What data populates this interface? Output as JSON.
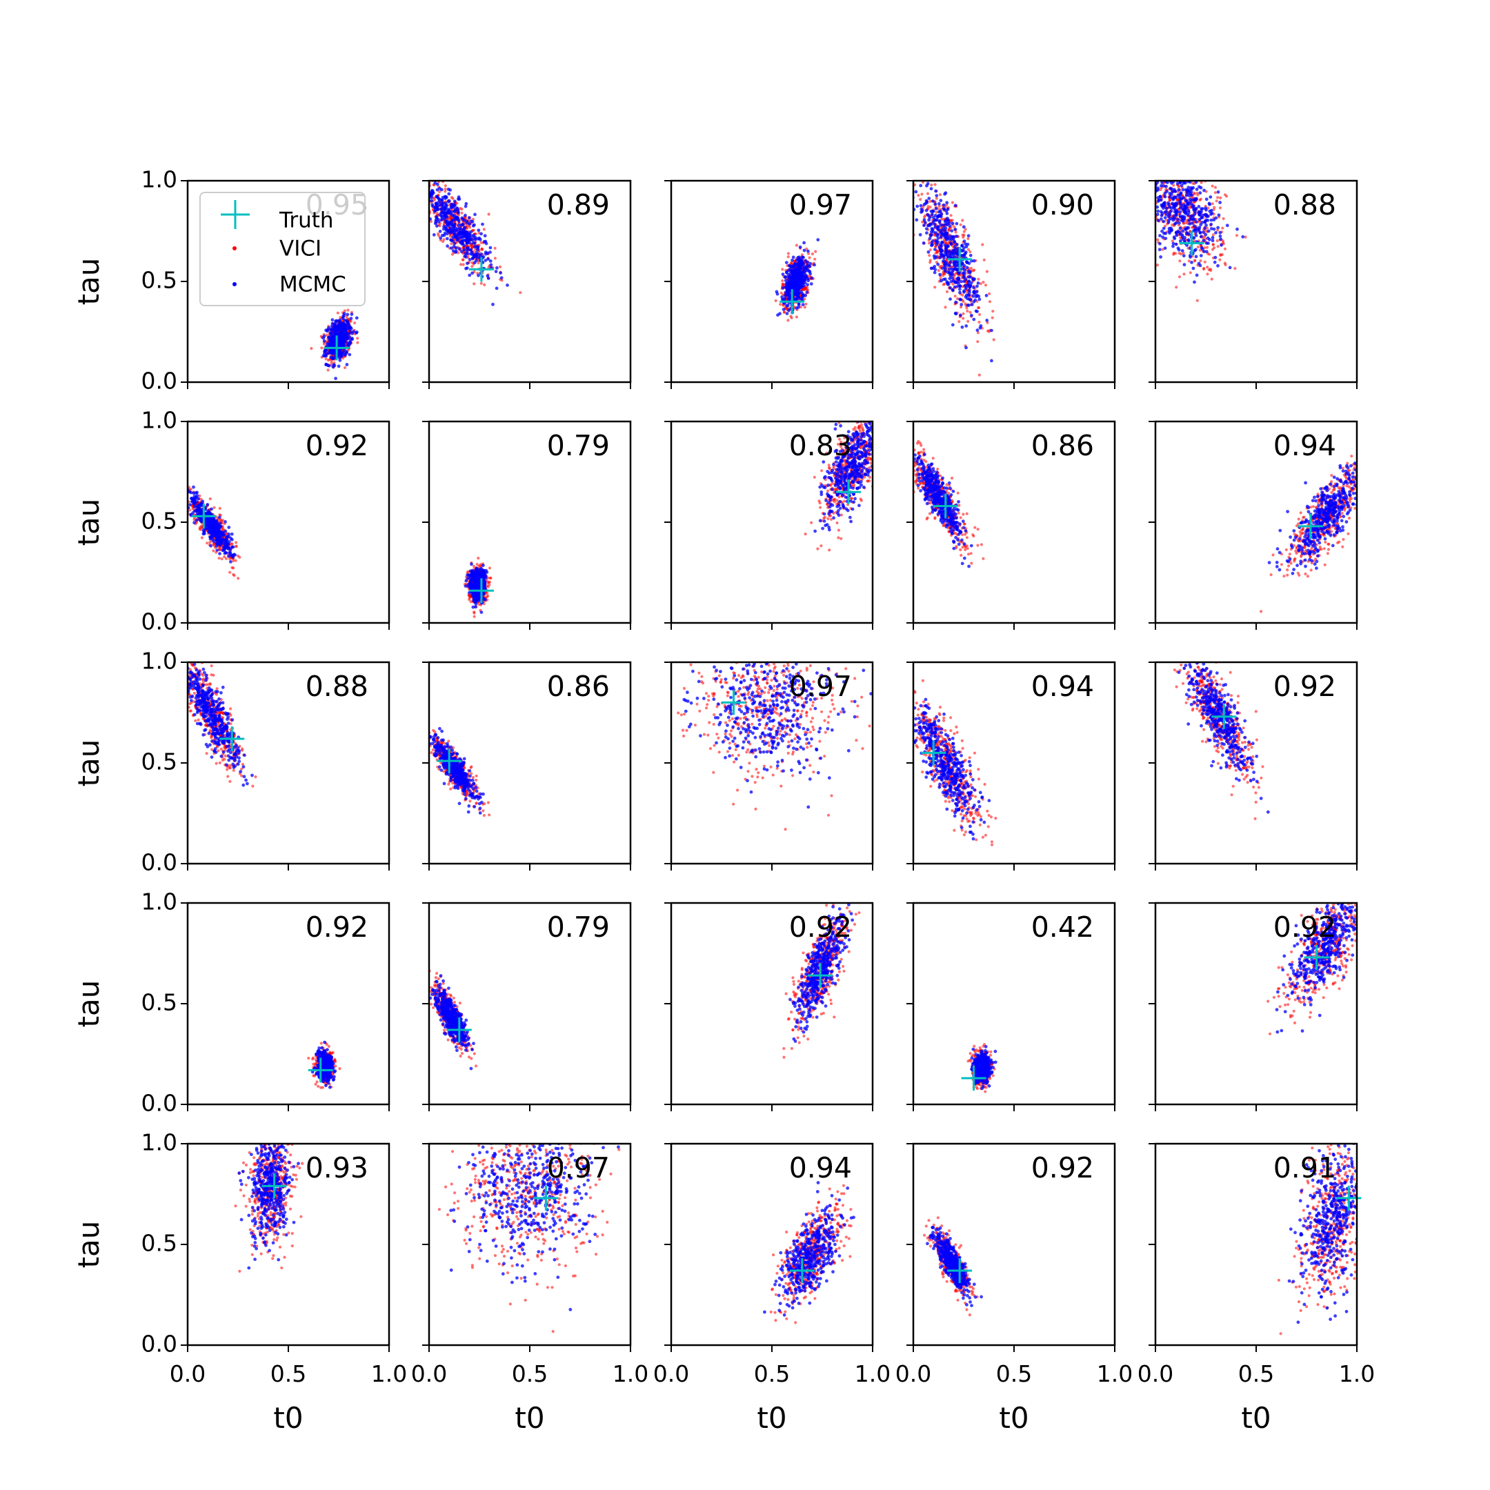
{
  "figure": {
    "xlabel": "t0",
    "ylabel": "tau",
    "xticks": [
      "0.0",
      "0.5",
      "1.0"
    ],
    "yticks": [
      "0.0",
      "0.5",
      "1.0"
    ],
    "legend": {
      "truth": "Truth",
      "vici": "VICI",
      "mcmc": "MCMC"
    }
  },
  "colors": {
    "truth": "#00bfbf",
    "vici": "#ff0000",
    "mcmc": "#0000ff"
  },
  "chart_data": {
    "type": "scatter",
    "grid": "off",
    "layout": "5x5 grid of subplots",
    "xlabel": "t0",
    "ylabel": "tau",
    "xlim": [
      0,
      1
    ],
    "ylim": [
      0,
      1
    ],
    "legend_position": "top-left (first panel)",
    "series_names": [
      "Truth",
      "VICI",
      "MCMC"
    ],
    "panels": [
      {
        "score": "0.95",
        "truth": [
          0.74,
          0.17
        ],
        "cloud": {
          "cx": 0.75,
          "cy": 0.21,
          "sx": 0.03,
          "sy": 0.05,
          "rho": 0.3
        }
      },
      {
        "score": "0.89",
        "truth": [
          0.26,
          0.56
        ],
        "cloud": {
          "cx": 0.13,
          "cy": 0.78,
          "sx": 0.09,
          "sy": 0.12,
          "rho": -0.85
        }
      },
      {
        "score": "0.97",
        "truth": [
          0.6,
          0.4
        ],
        "cloud": {
          "cx": 0.62,
          "cy": 0.5,
          "sx": 0.03,
          "sy": 0.06,
          "rho": 0.4
        }
      },
      {
        "score": "0.90",
        "truth": [
          0.23,
          0.61
        ],
        "cloud": {
          "cx": 0.18,
          "cy": 0.64,
          "sx": 0.08,
          "sy": 0.16,
          "rho": -0.8
        }
      },
      {
        "score": "0.88",
        "truth": [
          0.18,
          0.69
        ],
        "cloud": {
          "cx": 0.14,
          "cy": 0.84,
          "sx": 0.09,
          "sy": 0.12,
          "rho": -0.4
        }
      },
      {
        "score": "0.92",
        "truth": [
          0.08,
          0.53
        ],
        "cloud": {
          "cx": 0.12,
          "cy": 0.48,
          "sx": 0.05,
          "sy": 0.07,
          "rho": -0.85
        }
      },
      {
        "score": "0.79",
        "truth": [
          0.26,
          0.16
        ],
        "cloud": {
          "cx": 0.24,
          "cy": 0.19,
          "sx": 0.02,
          "sy": 0.04,
          "rho": 0.0
        }
      },
      {
        "score": "0.83",
        "truth": [
          0.88,
          0.65
        ],
        "cloud": {
          "cx": 0.9,
          "cy": 0.78,
          "sx": 0.07,
          "sy": 0.13,
          "rho": 0.7
        }
      },
      {
        "score": "0.86",
        "truth": [
          0.16,
          0.58
        ],
        "cloud": {
          "cx": 0.13,
          "cy": 0.62,
          "sx": 0.06,
          "sy": 0.1,
          "rho": -0.85
        }
      },
      {
        "score": "0.94",
        "truth": [
          0.77,
          0.48
        ],
        "cloud": {
          "cx": 0.85,
          "cy": 0.53,
          "sx": 0.09,
          "sy": 0.12,
          "rho": 0.8
        }
      },
      {
        "score": "0.88",
        "truth": [
          0.22,
          0.62
        ],
        "cloud": {
          "cx": 0.12,
          "cy": 0.74,
          "sx": 0.07,
          "sy": 0.13,
          "rho": -0.85
        }
      },
      {
        "score": "0.86",
        "truth": [
          0.1,
          0.51
        ],
        "cloud": {
          "cx": 0.13,
          "cy": 0.47,
          "sx": 0.05,
          "sy": 0.07,
          "rho": -0.85
        }
      },
      {
        "score": "0.97",
        "truth": [
          0.31,
          0.8
        ],
        "cloud": {
          "cx": 0.48,
          "cy": 0.78,
          "sx": 0.17,
          "sy": 0.16,
          "rho": 0.0
        }
      },
      {
        "score": "0.94",
        "truth": [
          0.1,
          0.55
        ],
        "cloud": {
          "cx": 0.16,
          "cy": 0.5,
          "sx": 0.08,
          "sy": 0.14,
          "rho": -0.8
        }
      },
      {
        "score": "0.92",
        "truth": [
          0.34,
          0.73
        ],
        "cloud": {
          "cx": 0.31,
          "cy": 0.73,
          "sx": 0.08,
          "sy": 0.14,
          "rho": -0.8
        }
      },
      {
        "score": "0.92",
        "truth": [
          0.66,
          0.17
        ],
        "cloud": {
          "cx": 0.68,
          "cy": 0.19,
          "sx": 0.02,
          "sy": 0.035,
          "rho": 0.0
        }
      },
      {
        "score": "0.79",
        "truth": [
          0.15,
          0.37
        ],
        "cloud": {
          "cx": 0.11,
          "cy": 0.43,
          "sx": 0.04,
          "sy": 0.07,
          "rho": -0.8
        }
      },
      {
        "score": "0.92",
        "truth": [
          0.74,
          0.64
        ],
        "cloud": {
          "cx": 0.74,
          "cy": 0.67,
          "sx": 0.06,
          "sy": 0.13,
          "rho": 0.75
        }
      },
      {
        "score": "0.42",
        "truth": [
          0.3,
          0.13
        ],
        "cloud": {
          "cx": 0.34,
          "cy": 0.18,
          "sx": 0.02,
          "sy": 0.035,
          "rho": 0.0
        }
      },
      {
        "score": "0.92",
        "truth": [
          0.8,
          0.73
        ],
        "cloud": {
          "cx": 0.84,
          "cy": 0.78,
          "sx": 0.09,
          "sy": 0.14,
          "rho": 0.7
        }
      },
      {
        "score": "0.93",
        "truth": [
          0.43,
          0.79
        ],
        "cloud": {
          "cx": 0.41,
          "cy": 0.79,
          "sx": 0.05,
          "sy": 0.14,
          "rho": 0.2
        }
      },
      {
        "score": "0.97",
        "truth": [
          0.58,
          0.73
        ],
        "cloud": {
          "cx": 0.49,
          "cy": 0.74,
          "sx": 0.15,
          "sy": 0.17,
          "rho": 0.0
        }
      },
      {
        "score": "0.94",
        "truth": [
          0.65,
          0.37
        ],
        "cloud": {
          "cx": 0.69,
          "cy": 0.44,
          "sx": 0.07,
          "sy": 0.11,
          "rho": 0.6
        }
      },
      {
        "score": "0.92",
        "truth": [
          0.23,
          0.37
        ],
        "cloud": {
          "cx": 0.19,
          "cy": 0.41,
          "sx": 0.04,
          "sy": 0.07,
          "rho": -0.8
        }
      },
      {
        "score": "0.91",
        "truth": [
          0.96,
          0.73
        ],
        "cloud": {
          "cx": 0.88,
          "cy": 0.62,
          "sx": 0.08,
          "sy": 0.18,
          "rho": 0.4
        }
      }
    ]
  }
}
